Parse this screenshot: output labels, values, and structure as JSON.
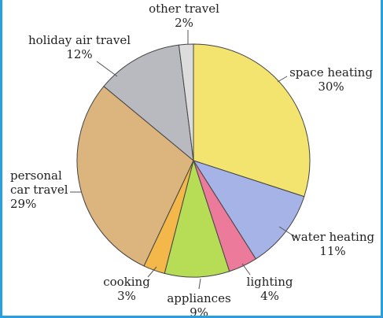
{
  "chart_data": {
    "type": "pie",
    "title": "",
    "start_angle_deg": 0,
    "direction": "clockwise",
    "slices": [
      {
        "label_lines": [
          "space heating",
          "30%"
        ],
        "value": 30,
        "color": "#f2e46e"
      },
      {
        "label_lines": [
          "water heating",
          "11%"
        ],
        "value": 11,
        "color": "#a5b3e6"
      },
      {
        "label_lines": [
          "lighting",
          "4%"
        ],
        "value": 4,
        "color": "#ec7a9a"
      },
      {
        "label_lines": [
          "appliances",
          "9%"
        ],
        "value": 9,
        "color": "#b7dc55"
      },
      {
        "label_lines": [
          "cooking",
          "3%"
        ],
        "value": 3,
        "color": "#f3b74a"
      },
      {
        "label_lines": [
          "personal",
          "car travel",
          "29%"
        ],
        "value": 29,
        "color": "#dcb57e"
      },
      {
        "label_lines": [
          "holiday air travel",
          "12%"
        ],
        "value": 12,
        "color": "#b9babf"
      },
      {
        "label_lines": [
          "other travel",
          "2%"
        ],
        "value": 2,
        "color": "#dcdcdc"
      }
    ]
  }
}
